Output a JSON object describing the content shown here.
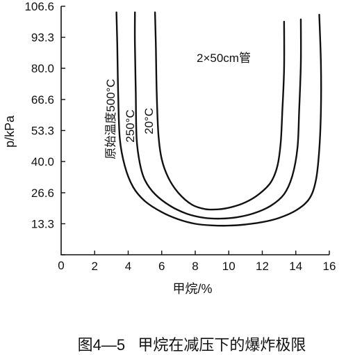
{
  "chart_data": {
    "type": "line",
    "title": "",
    "xlabel": "甲烷/%",
    "ylabel": "p/kPa",
    "xlim": [
      0,
      16
    ],
    "ylim": [
      0,
      106.6
    ],
    "x_ticks": [
      "2",
      "4",
      "6",
      "8",
      "10",
      "12",
      "14",
      "16"
    ],
    "y_ticks": [
      "0",
      "13.3",
      "26.6",
      "40.0",
      "53.3",
      "66.6",
      "80.0",
      "93.3",
      "106.6"
    ],
    "x_tick_values": [
      2,
      4,
      6,
      8,
      10,
      12,
      14,
      16
    ],
    "y_tick_values": [
      0,
      13.3,
      26.6,
      40.0,
      53.3,
      66.6,
      80.0,
      93.3,
      106.6
    ],
    "grid": false,
    "annotation": "2×50cm管",
    "series": [
      {
        "name": "原始温度500°C",
        "x": [
          3.3,
          3.35,
          3.4,
          3.5,
          3.8,
          4.3,
          5.0,
          6.0,
          7.0,
          8.0,
          9.0,
          10.0,
          11.0,
          12.0,
          13.0,
          14.0,
          14.8,
          15.2,
          15.4,
          15.5,
          15.5,
          15.4
        ],
        "y": [
          104,
          90,
          70,
          50,
          38,
          29,
          23,
          18.3,
          15.2,
          13.3,
          12.6,
          12.5,
          13.0,
          14.0,
          15.8,
          19.0,
          24,
          32,
          45,
          62,
          82,
          103
        ]
      },
      {
        "name": "250°C",
        "x": [
          4.4,
          4.4,
          4.45,
          4.5,
          4.7,
          5.0,
          5.6,
          6.5,
          7.5,
          8.5,
          9.5,
          10.5,
          11.5,
          12.5,
          13.3,
          13.8,
          14.1,
          14.2,
          14.3,
          14.3
        ],
        "y": [
          104,
          90,
          70,
          50,
          39,
          32,
          26,
          21,
          17.6,
          15.9,
          15.5,
          16.1,
          17.8,
          21,
          26,
          34,
          46,
          62,
          82,
          101
        ]
      },
      {
        "name": "20°C",
        "x": [
          5.6,
          5.65,
          5.7,
          5.8,
          6.0,
          6.4,
          7.0,
          7.8,
          8.6,
          9.4,
          10.2,
          11.0,
          11.8,
          12.5,
          12.9,
          13.1,
          13.2,
          13.3,
          13.3
        ],
        "y": [
          104,
          90,
          70,
          52,
          41,
          33,
          26.5,
          21.5,
          19.6,
          19.5,
          20.5,
          22.5,
          26,
          31,
          38,
          48,
          62,
          80,
          100
        ]
      }
    ],
    "series_labels": [
      "原始温度500°C",
      "250°C",
      "20°C"
    ]
  },
  "caption": "图4—5   甲烷在减压下的爆炸极限"
}
